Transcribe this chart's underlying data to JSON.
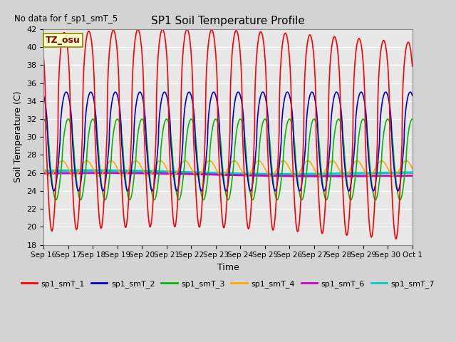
{
  "title": "SP1 Soil Temperature Profile",
  "xlabel": "Time",
  "ylabel": "Soil Temperature (C)",
  "no_data_text": "No data for f_sp1_smT_5",
  "tz_label": "TZ_osu",
  "ylim": [
    18,
    42
  ],
  "yticks": [
    18,
    20,
    22,
    24,
    26,
    28,
    30,
    32,
    34,
    36,
    38,
    40,
    42
  ],
  "background_color": "#d3d3d3",
  "plot_bg_color": "#e8e8e8",
  "series_colors": {
    "sp1_smT_1": "#ff0000",
    "sp1_smT_2": "#0000cc",
    "sp1_smT_3": "#00bb00",
    "sp1_smT_4": "#ffaa00",
    "sp1_smT_6": "#cc00cc",
    "sp1_smT_7": "#00cccc"
  },
  "series_lw": {
    "sp1_smT_1": 1.2,
    "sp1_smT_2": 1.2,
    "sp1_smT_3": 1.2,
    "sp1_smT_4": 1.2,
    "sp1_smT_6": 2.0,
    "sp1_smT_7": 2.5
  },
  "x_tick_labels": [
    "Sep 16",
    "Sep 17",
    "Sep 18",
    "Sep 19",
    "Sep 20",
    "Sep 21",
    "Sep 22",
    "Sep 23",
    "Sep 24",
    "Sep 25",
    "Sep 26",
    "Sep 27",
    "Sep 28",
    "Sep 29",
    "Sep 30",
    "Oct 1"
  ],
  "legend_entries": [
    {
      "label": "sp1_smT_1",
      "color": "#ff0000"
    },
    {
      "label": "sp1_smT_2",
      "color": "#0000cc"
    },
    {
      "label": "sp1_smT_3",
      "color": "#00bb00"
    },
    {
      "label": "sp1_smT_4",
      "color": "#ffaa00"
    },
    {
      "label": "sp1_smT_6",
      "color": "#cc00cc"
    },
    {
      "label": "sp1_smT_7",
      "color": "#00cccc"
    }
  ],
  "smT1_mean": 30.0,
  "smT1_amp": 11.0,
  "smT2_mean": 29.5,
  "smT2_amp": 5.5,
  "smT3_mean": 27.5,
  "smT3_amp": 4.5,
  "smT4_mean": 26.5,
  "smT4_amp": 0.85,
  "smT6_mean": 25.95,
  "smT7_mean": 26.15
}
